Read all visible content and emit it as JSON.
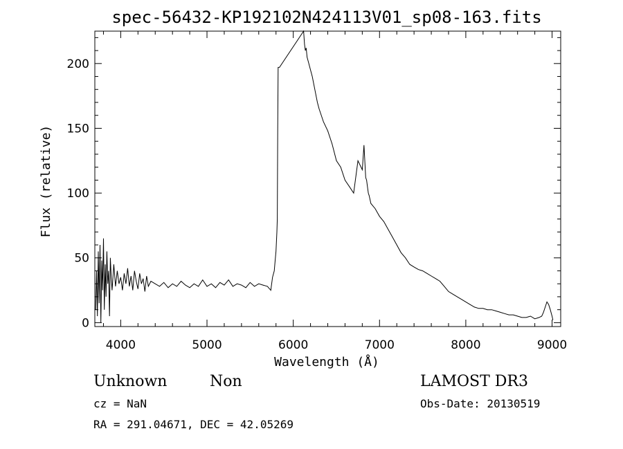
{
  "chart_data": {
    "type": "line",
    "title": "spec-56432-KP192102N424113V01_sp08-163.fits",
    "xlabel": "Wavelength (Å)",
    "ylabel": "Flux (relative)",
    "xlim": [
      3700,
      9100
    ],
    "ylim": [
      -3,
      225
    ],
    "xticks": [
      4000,
      5000,
      6000,
      7000,
      8000,
      9000
    ],
    "yticks": [
      0,
      50,
      100,
      150,
      200
    ],
    "grid": false,
    "series": [
      {
        "x": [
          3710,
          3720,
          3730,
          3740,
          3750,
          3760,
          3770,
          3780,
          3790,
          3800,
          3810,
          3820,
          3830,
          3840,
          3850,
          3860,
          3870,
          3880,
          3890,
          3900,
          3920,
          3940,
          3960,
          3980,
          4000,
          4020,
          4040,
          4060,
          4080,
          4100,
          4120,
          4140,
          4160,
          4180,
          4200,
          4220,
          4240,
          4260,
          4280,
          4300,
          4320,
          4350,
          4400,
          4450,
          4500,
          4550,
          4600,
          4650,
          4700,
          4750,
          4800,
          4850,
          4900,
          4950,
          5000,
          5050,
          5100,
          5150,
          5200,
          5250,
          5300,
          5350,
          5400,
          5450,
          5500,
          5550,
          5600,
          5650,
          5700,
          5740,
          5760,
          5780,
          5790,
          5800,
          5810,
          5815,
          5820,
          5825,
          5830,
          5840,
          6120,
          6130,
          6140,
          6150,
          6160,
          6180,
          6200,
          6220,
          6250,
          6280,
          6300,
          6350,
          6400,
          6450,
          6500,
          6550,
          6600,
          6650,
          6700,
          6750,
          6800,
          6820,
          6840,
          6850,
          6860,
          6870,
          6880,
          6900,
          6950,
          7000,
          7050,
          7100,
          7150,
          7200,
          7250,
          7300,
          7350,
          7400,
          7450,
          7500,
          7550,
          7600,
          7650,
          7700,
          7750,
          7800,
          7850,
          7900,
          7950,
          8000,
          8050,
          8100,
          8150,
          8200,
          8250,
          8300,
          8350,
          8400,
          8450,
          8500,
          8550,
          8600,
          8650,
          8700,
          8750,
          8800,
          8850,
          8880,
          8900,
          8920,
          8940,
          8960,
          8980,
          9000,
          9010
        ],
        "y": [
          10,
          40,
          5,
          55,
          15,
          60,
          0,
          48,
          25,
          65,
          10,
          45,
          20,
          55,
          30,
          40,
          5,
          50,
          35,
          25,
          45,
          28,
          40,
          30,
          35,
          25,
          38,
          30,
          42,
          28,
          36,
          25,
          40,
          32,
          26,
          38,
          30,
          34,
          24,
          36,
          28,
          32,
          30,
          28,
          31,
          27,
          30,
          28,
          32,
          29,
          27,
          30,
          28,
          33,
          28,
          30,
          27,
          31,
          29,
          33,
          28,
          30,
          29,
          27,
          31,
          28,
          30,
          29,
          28,
          25,
          35,
          40,
          48,
          55,
          70,
          80,
          150,
          197,
          197,
          197,
          225,
          215,
          210,
          212,
          205,
          200,
          195,
          190,
          180,
          170,
          165,
          155,
          148,
          138,
          125,
          120,
          110,
          105,
          100,
          125,
          118,
          137,
          112,
          110,
          105,
          100,
          98,
          92,
          88,
          82,
          78,
          72,
          66,
          60,
          54,
          50,
          45,
          43,
          41,
          40,
          38,
          36,
          34,
          32,
          28,
          24,
          22,
          20,
          18,
          16,
          14,
          12,
          11,
          11,
          10,
          10,
          9,
          8,
          7,
          6,
          6,
          5,
          4,
          4,
          5,
          3,
          4,
          5,
          8,
          12,
          16,
          14,
          10,
          5,
          2
        ]
      }
    ]
  },
  "annotations": {
    "object_class": "Unknown",
    "subclass": "Non",
    "survey": "LAMOST DR3",
    "cz": "cz = NaN",
    "obs_date": "Obs-Date: 20130519",
    "coords": "RA = 291.04671, DEC =  42.05269"
  }
}
